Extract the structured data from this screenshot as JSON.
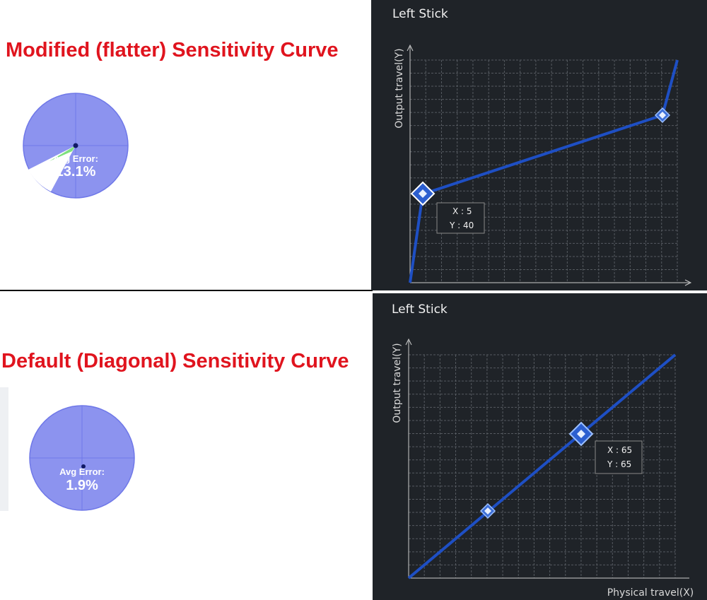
{
  "top": {
    "caption": "Modified (flatter) Sensitivity Curve",
    "avg_error_label": "Avg Error:",
    "avg_error_value": "13.1%",
    "panel_title": "Left Stick",
    "y_axis_label": "Output travel(Y)",
    "tooltip": {
      "x": "X : 5",
      "y": "Y : 40"
    }
  },
  "bottom": {
    "caption": "Default (Diagonal) Sensitivity Curve",
    "avg_error_label": "Avg Error:",
    "avg_error_value": "1.9%",
    "panel_title": "Left Stick",
    "y_axis_label": "Output travel(Y)",
    "x_axis_label": "Physical travel(X)",
    "tooltip": {
      "x": "X : 65",
      "y": "Y : 65"
    }
  }
}
